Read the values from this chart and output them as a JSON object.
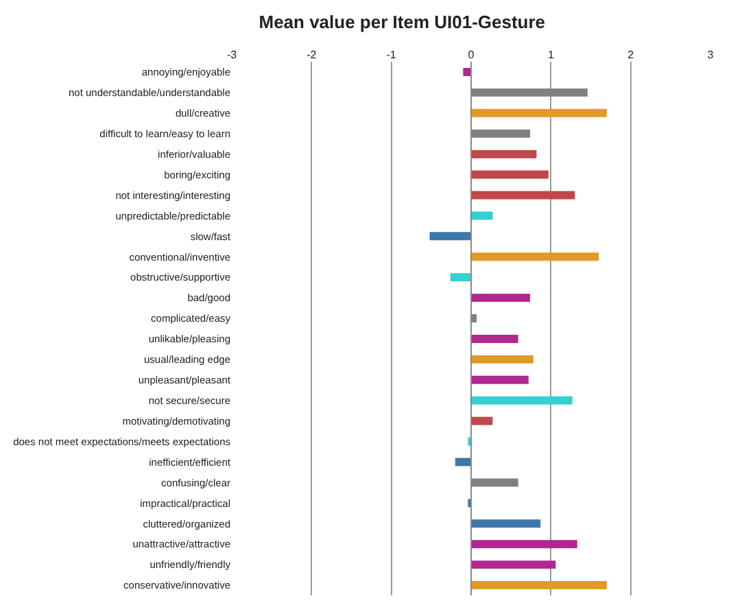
{
  "chart_data": {
    "type": "bar",
    "orientation": "horizontal",
    "title": "Mean value per Item UI01-Gesture",
    "categories": [
      "annoying/enjoyable",
      "not understandable/understandable",
      "dull/creative",
      "difficult to learn/easy to learn",
      "inferior/valuable",
      "boring/exciting",
      "not interesting/interesting",
      "unpredictable/predictable",
      "slow/fast",
      "conventional/inventive",
      "obstructive/supportive",
      "bad/good",
      "complicated/easy",
      "unlikable/pleasing",
      "usual/leading edge",
      "unpleasant/pleasant",
      "not secure/secure",
      "motivating/demotivating",
      "does not meet expectations/meets expectations",
      "inefficient/efficient",
      "confusing/clear",
      "impractical/practical",
      "cluttered/organized",
      "unattractive/attractive",
      "unfriendly/friendly",
      "conservative/innovative"
    ],
    "values": [
      -0.1,
      1.46,
      1.7,
      0.74,
      0.82,
      0.97,
      1.3,
      0.27,
      -0.52,
      1.6,
      -0.26,
      0.74,
      0.07,
      0.59,
      0.78,
      0.72,
      1.27,
      0.27,
      -0.04,
      -0.2,
      0.59,
      -0.04,
      0.87,
      1.33,
      1.06,
      1.7
    ],
    "colors": [
      "#b0288f",
      "#808080",
      "#e09a25",
      "#808080",
      "#c0474a",
      "#c0474a",
      "#c0474a",
      "#33d1d1",
      "#3e77ab",
      "#e09a25",
      "#33d1d1",
      "#b0288f",
      "#808080",
      "#b0288f",
      "#e09a25",
      "#b0288f",
      "#33d1d1",
      "#c0474a",
      "#33d1d1",
      "#3e77ab",
      "#808080",
      "#3e77ab",
      "#3e77ab",
      "#b0288f",
      "#b0288f",
      "#e09a25"
    ],
    "xlim": [
      -3,
      3
    ],
    "xticks": [
      -3,
      -2,
      -1,
      0,
      1,
      2,
      3
    ],
    "grid": "x"
  }
}
